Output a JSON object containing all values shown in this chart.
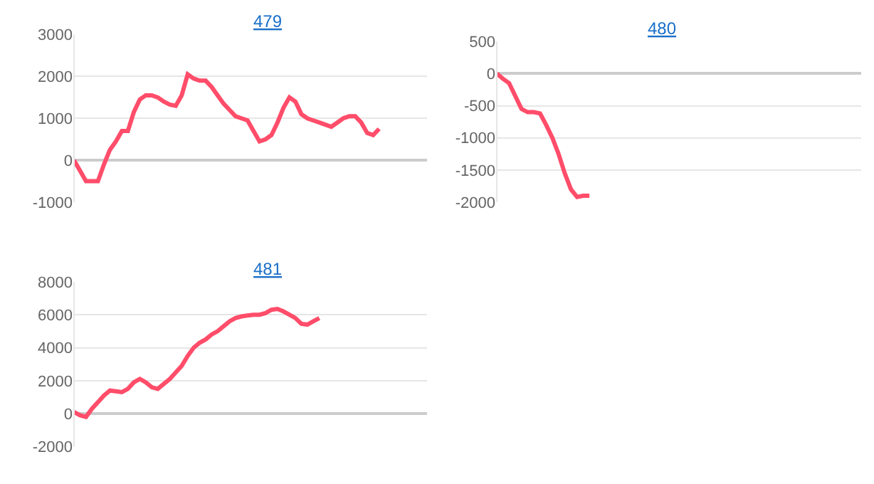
{
  "chart_data": [
    {
      "type": "line",
      "title": "479",
      "categories": [
        null,
        null,
        null,
        null,
        null,
        null,
        null,
        null,
        null,
        null,
        null,
        null,
        null,
        null,
        null,
        null,
        null,
        null,
        null,
        null,
        null,
        null,
        null,
        null,
        null,
        null,
        null,
        null,
        null,
        null,
        null,
        null,
        null,
        null,
        null,
        null,
        null,
        null,
        null,
        null,
        null,
        null,
        null,
        null,
        null,
        null,
        null,
        null,
        null,
        null,
        null,
        null,
        null,
        null,
        null,
        null,
        null,
        null,
        null,
        null
      ],
      "series": [
        {
          "color": "#ff4d6a",
          "values": [
            0,
            -250,
            -500,
            -500,
            -500,
            -100,
            250,
            450,
            700,
            700,
            1150,
            1450,
            1550,
            1550,
            1500,
            1400,
            1330,
            1300,
            1550,
            2050,
            1950,
            1900,
            1900,
            1750,
            1550,
            1350,
            1200,
            1050,
            1000,
            950,
            700,
            450,
            500,
            600,
            900,
            1250,
            1500,
            1400,
            1100,
            1000,
            950,
            900,
            850,
            800,
            900,
            1000,
            1050,
            1050,
            900,
            650,
            600,
            750,
            null,
            null,
            null,
            null,
            null,
            null,
            null,
            null
          ]
        }
      ],
      "ylim": [
        -1000,
        3000
      ],
      "yticks": [
        -1000,
        0,
        1000,
        2000,
        3000
      ],
      "grid": "y",
      "tick_labels": "y",
      "marker": "none",
      "line_style": "solid"
    },
    {
      "type": "line",
      "title": "480",
      "categories": [
        null,
        null,
        null,
        null,
        null,
        null,
        null,
        null,
        null,
        null,
        null,
        null,
        null,
        null,
        null,
        null,
        null,
        null,
        null,
        null,
        null,
        null,
        null,
        null,
        null,
        null,
        null,
        null,
        null,
        null,
        null,
        null,
        null,
        null,
        null,
        null,
        null,
        null,
        null,
        null,
        null,
        null,
        null,
        null,
        null,
        null,
        null,
        null,
        null,
        null,
        null,
        null,
        null,
        null,
        null,
        null,
        null,
        null,
        null,
        null
      ],
      "series": [
        {
          "color": "#ff4d6a",
          "values": [
            0,
            -80,
            -150,
            -350,
            -550,
            -600,
            -600,
            -620,
            -800,
            -1000,
            -1250,
            -1550,
            -1800,
            -1920,
            -1900,
            -1900,
            null,
            null,
            null,
            null,
            null,
            null,
            null,
            null,
            null,
            null,
            null,
            null,
            null,
            null,
            null,
            null,
            null,
            null,
            null,
            null,
            null,
            null,
            null,
            null,
            null,
            null,
            null,
            null,
            null,
            null,
            null,
            null,
            null,
            null,
            null,
            null,
            null,
            null,
            null,
            null,
            null,
            null,
            null,
            null
          ]
        }
      ],
      "ylim": [
        -2000,
        500
      ],
      "yticks": [
        -2000,
        -1500,
        -1000,
        -500,
        0,
        500
      ],
      "grid": "y",
      "tick_labels": "y",
      "marker": "none",
      "line_style": "solid"
    },
    {
      "type": "line",
      "title": "481",
      "categories": [
        null,
        null,
        null,
        null,
        null,
        null,
        null,
        null,
        null,
        null,
        null,
        null,
        null,
        null,
        null,
        null,
        null,
        null,
        null,
        null,
        null,
        null,
        null,
        null,
        null,
        null,
        null,
        null,
        null,
        null,
        null,
        null,
        null,
        null,
        null,
        null,
        null,
        null,
        null,
        null,
        null,
        null,
        null,
        null,
        null,
        null,
        null,
        null,
        null,
        null,
        null,
        null,
        null,
        null,
        null,
        null,
        null,
        null,
        null,
        null
      ],
      "series": [
        {
          "color": "#ff4d6a",
          "values": [
            100,
            -100,
            -200,
            300,
            700,
            1100,
            1400,
            1350,
            1300,
            1500,
            1900,
            2100,
            1900,
            1600,
            1500,
            1800,
            2100,
            2500,
            2900,
            3500,
            4000,
            4300,
            4500,
            4800,
            5000,
            5300,
            5600,
            5800,
            5900,
            5950,
            6000,
            6000,
            6100,
            6300,
            6350,
            6200,
            6000,
            5800,
            5450,
            5400,
            5600,
            5800,
            null,
            null,
            null,
            null,
            null,
            null,
            null,
            null,
            null,
            null,
            null,
            null,
            null,
            null,
            null,
            null,
            null,
            null
          ]
        }
      ],
      "ylim": [
        -2000,
        8000
      ],
      "yticks": [
        -2000,
        0,
        2000,
        4000,
        6000,
        8000
      ],
      "grid": "y",
      "tick_labels": "y",
      "marker": "none",
      "line_style": "solid"
    }
  ]
}
